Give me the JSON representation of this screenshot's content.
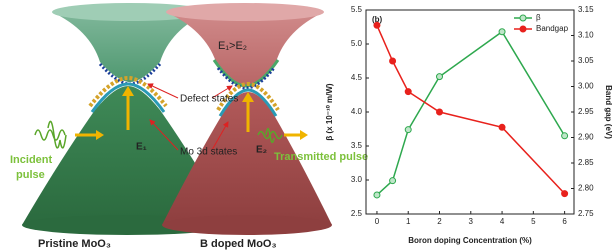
{
  "diagram": {
    "gap_label": "E₁>E₂",
    "defect_label": "Defect states",
    "e1": "E₁",
    "e2": "E₂",
    "incident_pulse": [
      "Incident",
      "pulse"
    ],
    "transmitted_pulse": "Transmitted pulse",
    "mo_label": "Mo 3d states",
    "left_caption": "Pristine MoO₃",
    "right_caption": "B doped MoO₃"
  },
  "chart_data": {
    "type": "line",
    "panel_label": "(b)",
    "xlabel": "Boron doping Concentration (%)",
    "ylabel": "β (x 10⁻¹⁰ m/W)",
    "y2label": "Band gap (eV)",
    "x": [
      0,
      0.5,
      1,
      2,
      4,
      6
    ],
    "xlim": [
      -0.35,
      6.3
    ],
    "xticks": [
      0,
      1,
      2,
      3,
      4,
      5,
      6
    ],
    "ylim": [
      2.5,
      5.5
    ],
    "yticks": [
      2.5,
      {
        "value": 3,
        "label": "3.0"
      },
      3.5,
      {
        "value": 4,
        "label": "4.0"
      },
      4.5,
      {
        "value": 5,
        "label": "5.0"
      },
      5.5
    ],
    "y2lim": [
      2.75,
      3.15
    ],
    "y2ticks": [
      2.75,
      {
        "value": 2.8,
        "label": "2.80"
      },
      2.85,
      {
        "value": 2.9,
        "label": "2.90"
      },
      2.95,
      {
        "value": 3,
        "label": "3.00"
      },
      3.05,
      {
        "value": 3.1,
        "label": "3.10"
      },
      3.15
    ],
    "series": [
      {
        "name": "β",
        "color": "#2ea84e",
        "values": [
          2.78,
          2.99,
          3.74,
          4.52,
          5.18,
          3.65
        ]
      },
      {
        "name": "Bandgap",
        "color": "#e8211c",
        "axis": "y2",
        "values": [
          3.12,
          3.05,
          2.99,
          2.95,
          2.92,
          2.79
        ]
      }
    ],
    "legend": "upper right",
    "grid": false
  }
}
